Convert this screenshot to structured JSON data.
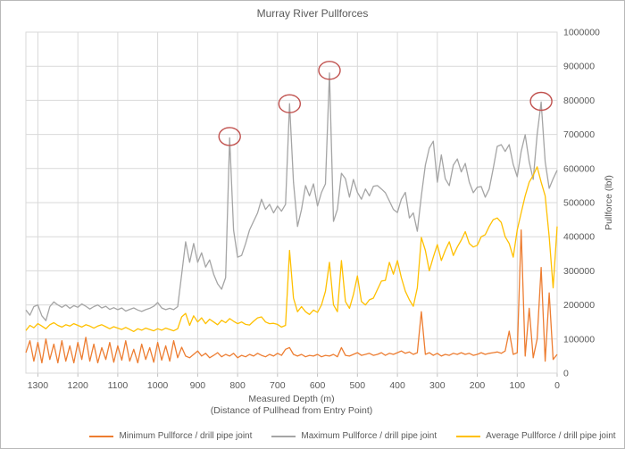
{
  "chart_data": {
    "type": "line",
    "title": "Murray River Pullforces",
    "xlabel_line1": "Measured Depth (m)",
    "xlabel_line2": "(Distance of Pullhead from Entry Point)",
    "ylabel": "Pullforce (lbf)",
    "grid": true,
    "legend_position": "bottom",
    "x_axis": {
      "min": 0,
      "max": 1330,
      "reversed": true,
      "ticks": [
        1300,
        1200,
        1100,
        1000,
        900,
        800,
        700,
        600,
        500,
        400,
        300,
        200,
        100,
        0
      ]
    },
    "y_axis": {
      "min": 0,
      "max": 1000000,
      "ticks": [
        0,
        100000,
        200000,
        300000,
        400000,
        500000,
        600000,
        700000,
        800000,
        900000,
        1000000
      ]
    },
    "x": [
      1330,
      1320,
      1310,
      1300,
      1290,
      1280,
      1270,
      1260,
      1250,
      1240,
      1230,
      1220,
      1210,
      1200,
      1190,
      1180,
      1170,
      1160,
      1150,
      1140,
      1130,
      1120,
      1110,
      1100,
      1090,
      1080,
      1070,
      1060,
      1050,
      1040,
      1030,
      1020,
      1010,
      1000,
      990,
      980,
      970,
      960,
      950,
      940,
      930,
      920,
      910,
      900,
      890,
      880,
      870,
      860,
      850,
      840,
      830,
      820,
      810,
      800,
      790,
      780,
      770,
      760,
      750,
      740,
      730,
      720,
      710,
      700,
      690,
      680,
      670,
      660,
      650,
      640,
      630,
      620,
      610,
      600,
      590,
      580,
      570,
      560,
      550,
      540,
      530,
      520,
      510,
      500,
      490,
      480,
      470,
      460,
      450,
      440,
      430,
      420,
      410,
      400,
      390,
      380,
      370,
      360,
      350,
      340,
      330,
      320,
      310,
      300,
      290,
      280,
      270,
      260,
      250,
      240,
      230,
      220,
      210,
      200,
      190,
      180,
      170,
      160,
      150,
      140,
      130,
      120,
      110,
      100,
      90,
      80,
      70,
      60,
      50,
      40,
      30,
      20,
      10,
      0
    ],
    "series": [
      {
        "id": "minimum",
        "name": "Minimum Pullforce / drill pipe joint",
        "color": "#ED7D31",
        "values": [
          60000,
          95000,
          35000,
          90000,
          30000,
          100000,
          40000,
          85000,
          30000,
          95000,
          35000,
          80000,
          30000,
          90000,
          40000,
          105000,
          35000,
          85000,
          30000,
          75000,
          40000,
          90000,
          32000,
          80000,
          38000,
          95000,
          35000,
          70000,
          30000,
          85000,
          40000,
          75000,
          32000,
          90000,
          38000,
          80000,
          35000,
          95000,
          45000,
          76000,
          50000,
          45000,
          55000,
          65000,
          50000,
          58000,
          45000,
          52000,
          60000,
          48000,
          55000,
          50000,
          58000,
          45000,
          52000,
          48000,
          55000,
          50000,
          58000,
          52000,
          48000,
          55000,
          50000,
          58000,
          52000,
          70000,
          75000,
          55000,
          50000,
          55000,
          48000,
          52000,
          50000,
          55000,
          48000,
          52000,
          50000,
          55000,
          48000,
          75000,
          52000,
          50000,
          55000,
          60000,
          52000,
          55000,
          58000,
          52000,
          55000,
          60000,
          52000,
          58000,
          55000,
          60000,
          65000,
          58000,
          62000,
          55000,
          60000,
          180000,
          55000,
          60000,
          52000,
          58000,
          50000,
          55000,
          52000,
          58000,
          55000,
          60000,
          55000,
          58000,
          52000,
          55000,
          60000,
          55000,
          58000,
          60000,
          62000,
          58000,
          65000,
          123000,
          55000,
          60000,
          420000,
          50000,
          190000,
          45000,
          100000,
          310000,
          35000,
          235000,
          40000,
          55000
        ]
      },
      {
        "id": "maximum",
        "name": "Maximum Pullforce / drill pipe joint",
        "color": "#A5A5A5",
        "values": [
          185000,
          170000,
          195000,
          200000,
          168000,
          154000,
          195000,
          209000,
          200000,
          193000,
          200000,
          190000,
          198000,
          193000,
          203000,
          196000,
          188000,
          195000,
          200000,
          191000,
          196000,
          187000,
          192000,
          186000,
          191000,
          182000,
          187000,
          191000,
          185000,
          181000,
          186000,
          190000,
          196000,
          207000,
          191000,
          186000,
          190000,
          186000,
          195000,
          290000,
          385000,
          325000,
          380000,
          325000,
          353000,
          311000,
          332000,
          290000,
          262000,
          246000,
          280000,
          690000,
          420000,
          340000,
          345000,
          380000,
          420000,
          445000,
          470000,
          510000,
          480000,
          495000,
          470000,
          490000,
          475000,
          495000,
          790000,
          560000,
          430000,
          480000,
          550000,
          520000,
          555000,
          490000,
          530000,
          555000,
          880000,
          445000,
          480000,
          586000,
          570000,
          516000,
          568000,
          530000,
          510000,
          540000,
          520000,
          548000,
          550000,
          540000,
          529000,
          505000,
          480000,
          471000,
          510000,
          530000,
          455000,
          470000,
          416000,
          520000,
          610000,
          660000,
          680000,
          560000,
          640000,
          570000,
          550000,
          610000,
          628000,
          590000,
          615000,
          560000,
          529000,
          545000,
          547000,
          516000,
          540000,
          600000,
          665000,
          670000,
          650000,
          670000,
          612000,
          576000,
          650000,
          699000,
          620000,
          568000,
          700000,
          795000,
          620000,
          542000,
          570000,
          595000
        ]
      },
      {
        "id": "average",
        "name": "Average Pullforce / drill pipe joint",
        "color": "#FFC000",
        "values": [
          125000,
          140000,
          133000,
          145000,
          138000,
          130000,
          142000,
          148000,
          140000,
          135000,
          142000,
          138000,
          145000,
          140000,
          135000,
          142000,
          138000,
          132000,
          138000,
          142000,
          136000,
          130000,
          136000,
          132000,
          128000,
          134000,
          128000,
          122000,
          130000,
          126000,
          132000,
          128000,
          124000,
          130000,
          126000,
          132000,
          128000,
          124000,
          130000,
          165000,
          175000,
          140000,
          168000,
          150000,
          162000,
          145000,
          158000,
          150000,
          142000,
          155000,
          148000,
          160000,
          152000,
          145000,
          150000,
          143000,
          141000,
          152000,
          162000,
          165000,
          150000,
          145000,
          146000,
          143000,
          135000,
          140000,
          360000,
          220000,
          180000,
          195000,
          180000,
          172000,
          185000,
          178000,
          200000,
          240000,
          325000,
          200000,
          180000,
          330000,
          210000,
          190000,
          230000,
          285000,
          210000,
          200000,
          215000,
          220000,
          245000,
          270000,
          272000,
          325000,
          290000,
          330000,
          280000,
          240000,
          215000,
          196000,
          250000,
          398000,
          360000,
          300000,
          340000,
          377000,
          330000,
          360000,
          385000,
          345000,
          370000,
          390000,
          415000,
          380000,
          370000,
          375000,
          400000,
          406000,
          430000,
          450000,
          455000,
          442000,
          400000,
          380000,
          340000,
          420000,
          470000,
          520000,
          560000,
          580000,
          605000,
          560000,
          520000,
          400000,
          250000,
          430000
        ]
      }
    ],
    "annotations": {
      "shape": "ellipse",
      "color": "#C0504D",
      "points": [
        {
          "x": 820,
          "y": 694000
        },
        {
          "x": 670,
          "y": 790000
        },
        {
          "x": 570,
          "y": 888000
        },
        {
          "x": 40,
          "y": 797000
        }
      ]
    },
    "colors": {
      "gridline": "#d9d9d9",
      "axis_text": "#595959",
      "plot_border": "#d9d9d9",
      "tick": "#bfbfbf"
    }
  }
}
